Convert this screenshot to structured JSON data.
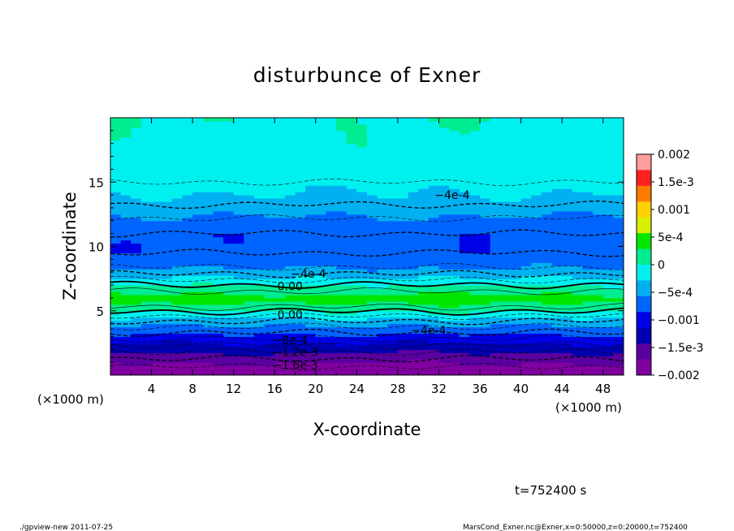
{
  "chart_data": {
    "type": "heatmap",
    "title": "disturbunce of Exner",
    "xlabel": "X-coordinate",
    "ylabel": "Z-coordinate",
    "x_unit": "(×1000 m)",
    "y_unit": "(×1000 m)",
    "xlim": [
      0,
      50
    ],
    "ylim": [
      0,
      20
    ],
    "x_ticks": [
      "4",
      "8",
      "12",
      "16",
      "20",
      "24",
      "28",
      "32",
      "36",
      "40",
      "44",
      "48"
    ],
    "y_ticks": [
      "5",
      "10",
      "15"
    ],
    "colorbar": {
      "min": -0.002,
      "max": 0.002,
      "tick_labels": [
        "0.002",
        "1.5e-3",
        "0.001",
        "5e-4",
        "0",
        "−5e-4",
        "−0.001",
        "−1.5e-3",
        "−0.002"
      ],
      "colors": [
        "#ff9e9e",
        "#ff2020",
        "#ff7a00",
        "#ffd000",
        "#d8f000",
        "#00e600",
        "#00ec90",
        "#00f0f0",
        "#00b0f0",
        "#0064ff",
        "#0000e6",
        "#0000b0",
        "#5a00a0",
        "#8000a0"
      ]
    },
    "vertical_profile": [
      {
        "z": 0.3,
        "value": -0.0019
      },
      {
        "z": 1.0,
        "value": -0.0017
      },
      {
        "z": 1.8,
        "value": -0.0014
      },
      {
        "z": 2.6,
        "value": -0.0011
      },
      {
        "z": 3.3,
        "value": -0.0008
      },
      {
        "z": 4.0,
        "value": -0.0005
      },
      {
        "z": 4.6,
        "value": -0.0002
      },
      {
        "z": 5.3,
        "value": 0.0002
      },
      {
        "z": 6.0,
        "value": 0.0004
      },
      {
        "z": 6.9,
        "value": 5e-05
      },
      {
        "z": 7.6,
        "value": -0.0003
      },
      {
        "z": 8.4,
        "value": -0.0006
      },
      {
        "z": 9.5,
        "value": -0.0008
      },
      {
        "z": 11.0,
        "value": -0.0008
      },
      {
        "z": 12.2,
        "value": -0.0006
      },
      {
        "z": 13.5,
        "value": -0.00035
      },
      {
        "z": 15.0,
        "value": -0.0002
      },
      {
        "z": 17.0,
        "value": -0.0001
      },
      {
        "z": 19.0,
        "value": -5e-05
      },
      {
        "z": 20.0,
        "value": -3e-05
      }
    ],
    "contour_labels": [
      {
        "text": "−4e-4",
        "x": 33.3,
        "z": 14.0
      },
      {
        "text": "−4e-4",
        "x": 19.3,
        "z": 7.9
      },
      {
        "text": "0.00",
        "x": 17.5,
        "z": 6.9
      },
      {
        "text": "0.00",
        "x": 17.5,
        "z": 4.7
      },
      {
        "text": "−4e-4",
        "x": 31.0,
        "z": 3.5
      },
      {
        "text": "−8e-4",
        "x": 17.5,
        "z": 2.7
      },
      {
        "text": "−1.2e-3",
        "x": 18.0,
        "z": 1.8
      },
      {
        "text": "−1.6e-3",
        "x": 18.0,
        "z": 0.8
      }
    ]
  },
  "annotations": {
    "time": "t=752400 s",
    "footer_left": "./gpview-new  2011-07-25",
    "footer_right": "MarsCond_Exner.nc@Exner,x=0:50000,z=0:20000,t=752400"
  }
}
